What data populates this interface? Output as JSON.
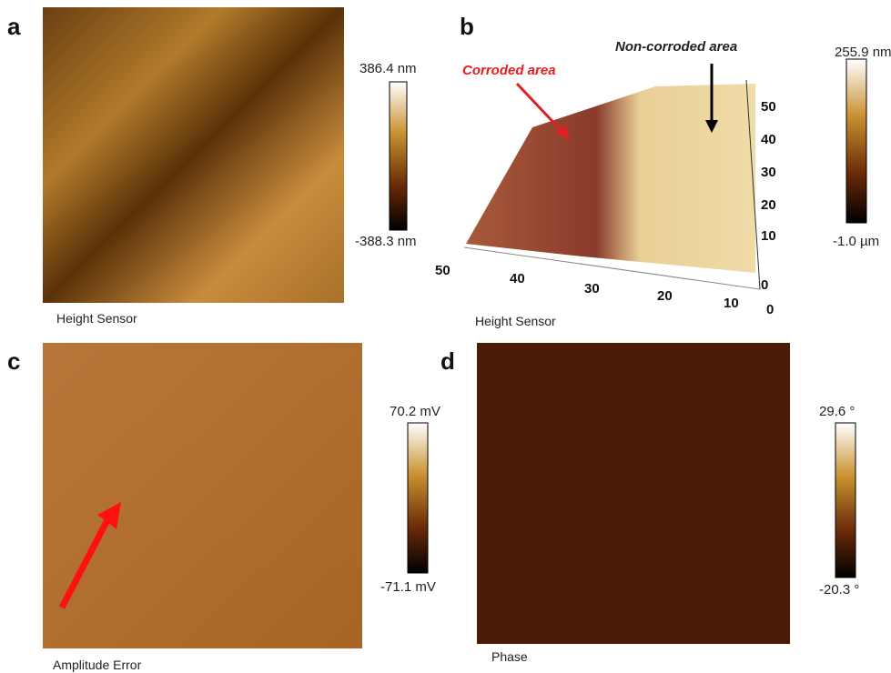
{
  "panels": [
    {
      "letter": "a",
      "caption": "Height Sensor",
      "scale_max": "386.4 nm",
      "scale_min": "-388.3 nm"
    },
    {
      "letter": "b",
      "caption": "Height Sensor",
      "scale_max": "255.9 nm",
      "scale_min": "-1.0 µm",
      "annotations": [
        "Non-corroded area",
        "Corroded area"
      ],
      "vertical_axis_ticks": [
        50,
        40,
        30,
        20,
        10,
        0
      ],
      "horizontal_axis_ticks": [
        50,
        40,
        30,
        20,
        10,
        0
      ]
    },
    {
      "letter": "c",
      "caption": "Amplitude Error",
      "scale_max": "70.2 mV",
      "scale_min": "-71.1 mV"
    },
    {
      "letter": "d",
      "caption": "Phase",
      "scale_max": "29.6 °",
      "scale_min": "-20.3 °"
    }
  ]
}
